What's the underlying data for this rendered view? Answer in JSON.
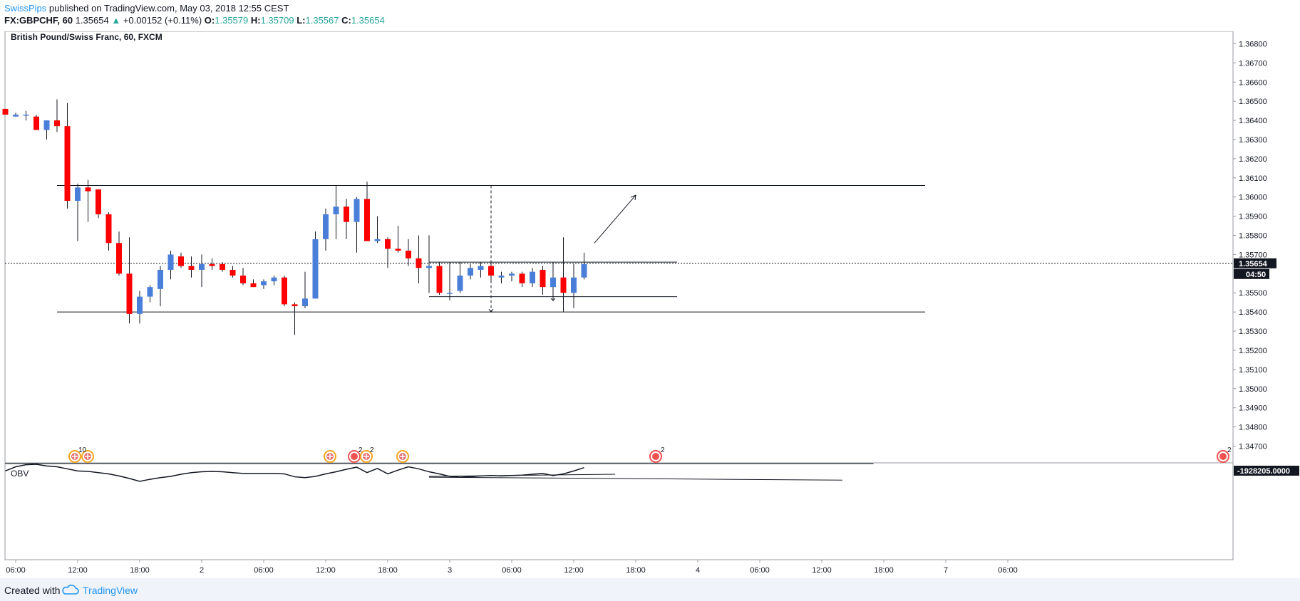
{
  "header": {
    "author": "SwissPips",
    "published_text": "published on TradingView.com, May 03, 2018 12:55 CEST",
    "symbol": "FX:GBPCHF, 60",
    "last": "1.35654",
    "up_arrow": "▲",
    "change": "+0.00152 (+0.11%)",
    "o_label": "O:",
    "o_value": "1.35579",
    "h_label": "H:",
    "h_value": "1.35709",
    "l_label": "L:",
    "l_value": "1.35567",
    "c_label": "C:",
    "c_value": "1.35654"
  },
  "chart_data": {
    "type": "candlestick",
    "title": "British Pound/Swiss Franc, 60, FXCM",
    "colors": {
      "up": "#4a7fd9",
      "down": "#ff0000",
      "grid_line": "#000000"
    },
    "ylim": [
      1.3462,
      1.3685
    ],
    "y_ticks": [
      "1.36800",
      "1.36700",
      "1.36600",
      "1.36500",
      "1.36400",
      "1.36300",
      "1.36200",
      "1.36100",
      "1.36000",
      "1.35900",
      "1.35800",
      "1.35700",
      "1.35654",
      "1.35500",
      "1.35400",
      "1.35300",
      "1.35200",
      "1.35100",
      "1.35000",
      "1.34900",
      "1.34800",
      "1.34700"
    ],
    "price_tag": "1.35654",
    "countdown_tag": "04:50",
    "x_ticks": [
      {
        "label": "06:00",
        "i": 1
      },
      {
        "label": "12:00",
        "i": 7
      },
      {
        "label": "18:00",
        "i": 13
      },
      {
        "label": "2",
        "i": 19
      },
      {
        "label": "06:00",
        "i": 25
      },
      {
        "label": "12:00",
        "i": 31
      },
      {
        "label": "18:00",
        "i": 37
      },
      {
        "label": "3",
        "i": 43
      },
      {
        "label": "06:00",
        "i": 49
      },
      {
        "label": "12:00",
        "i": 55
      },
      {
        "label": "18:00",
        "i": 61
      },
      {
        "label": "4",
        "i": 67
      },
      {
        "label": "06:00",
        "i": 73
      },
      {
        "label": "12:00",
        "i": 79
      },
      {
        "label": "18:00",
        "i": 85
      },
      {
        "label": "7",
        "i": 91
      },
      {
        "label": "06:00",
        "i": 97
      }
    ],
    "candles": [
      {
        "o": 1.3646,
        "h": 1.3646,
        "l": 1.3643,
        "c": 1.3643
      },
      {
        "o": 1.3642,
        "h": 1.3644,
        "l": 1.3642,
        "c": 1.3643
      },
      {
        "o": 1.3643,
        "h": 1.3645,
        "l": 1.364,
        "c": 1.3643
      },
      {
        "o": 1.3642,
        "h": 1.3643,
        "l": 1.3635,
        "c": 1.3635
      },
      {
        "o": 1.3635,
        "h": 1.364,
        "l": 1.363,
        "c": 1.364
      },
      {
        "o": 1.364,
        "h": 1.3651,
        "l": 1.3634,
        "c": 1.3637
      },
      {
        "o": 1.3637,
        "h": 1.3649,
        "l": 1.3594,
        "c": 1.3598
      },
      {
        "o": 1.3598,
        "h": 1.3607,
        "l": 1.3577,
        "c": 1.3605
      },
      {
        "o": 1.3605,
        "h": 1.3609,
        "l": 1.3587,
        "c": 1.3603
      },
      {
        "o": 1.3604,
        "h": 1.3604,
        "l": 1.3589,
        "c": 1.3591
      },
      {
        "o": 1.3591,
        "h": 1.3592,
        "l": 1.3572,
        "c": 1.3576
      },
      {
        "o": 1.3576,
        "h": 1.3582,
        "l": 1.3559,
        "c": 1.356
      },
      {
        "o": 1.356,
        "h": 1.3579,
        "l": 1.3534,
        "c": 1.3539
      },
      {
        "o": 1.3539,
        "h": 1.3551,
        "l": 1.3534,
        "c": 1.3548
      },
      {
        "o": 1.3548,
        "h": 1.3554,
        "l": 1.3545,
        "c": 1.3553
      },
      {
        "o": 1.3552,
        "h": 1.3564,
        "l": 1.3543,
        "c": 1.3562
      },
      {
        "o": 1.3562,
        "h": 1.3572,
        "l": 1.3557,
        "c": 1.357
      },
      {
        "o": 1.3569,
        "h": 1.3571,
        "l": 1.3563,
        "c": 1.3564
      },
      {
        "o": 1.3564,
        "h": 1.3569,
        "l": 1.3558,
        "c": 1.3562
      },
      {
        "o": 1.3562,
        "h": 1.357,
        "l": 1.3553,
        "c": 1.3565
      },
      {
        "o": 1.3565,
        "h": 1.3568,
        "l": 1.3562,
        "c": 1.3564
      },
      {
        "o": 1.3565,
        "h": 1.3566,
        "l": 1.3561,
        "c": 1.3562
      },
      {
        "o": 1.3562,
        "h": 1.3564,
        "l": 1.3558,
        "c": 1.3559
      },
      {
        "o": 1.3559,
        "h": 1.3563,
        "l": 1.3554,
        "c": 1.3555
      },
      {
        "o": 1.3555,
        "h": 1.3557,
        "l": 1.3553,
        "c": 1.3553
      },
      {
        "o": 1.3554,
        "h": 1.3557,
        "l": 1.3552,
        "c": 1.3556
      },
      {
        "o": 1.3556,
        "h": 1.3559,
        "l": 1.3554,
        "c": 1.3558
      },
      {
        "o": 1.3558,
        "h": 1.3559,
        "l": 1.3543,
        "c": 1.3544
      },
      {
        "o": 1.3544,
        "h": 1.3545,
        "l": 1.3528,
        "c": 1.3543
      },
      {
        "o": 1.3543,
        "h": 1.3561,
        "l": 1.3542,
        "c": 1.3547
      },
      {
        "o": 1.3547,
        "h": 1.3582,
        "l": 1.3547,
        "c": 1.3578
      },
      {
        "o": 1.3578,
        "h": 1.3594,
        "l": 1.3572,
        "c": 1.3591
      },
      {
        "o": 1.3591,
        "h": 1.3606,
        "l": 1.3578,
        "c": 1.3595
      },
      {
        "o": 1.3595,
        "h": 1.3599,
        "l": 1.3578,
        "c": 1.3587
      },
      {
        "o": 1.3587,
        "h": 1.36,
        "l": 1.3571,
        "c": 1.3599
      },
      {
        "o": 1.3599,
        "h": 1.3608,
        "l": 1.3577,
        "c": 1.3577
      },
      {
        "o": 1.3577,
        "h": 1.359,
        "l": 1.3576,
        "c": 1.3578
      },
      {
        "o": 1.3578,
        "h": 1.3579,
        "l": 1.3563,
        "c": 1.3573
      },
      {
        "o": 1.3573,
        "h": 1.3585,
        "l": 1.3571,
        "c": 1.3572
      },
      {
        "o": 1.3572,
        "h": 1.3578,
        "l": 1.3564,
        "c": 1.3568
      },
      {
        "o": 1.3568,
        "h": 1.358,
        "l": 1.3555,
        "c": 1.3563
      },
      {
        "o": 1.3563,
        "h": 1.358,
        "l": 1.355,
        "c": 1.3564
      },
      {
        "o": 1.3564,
        "h": 1.3566,
        "l": 1.3549,
        "c": 1.355
      },
      {
        "o": 1.355,
        "h": 1.3566,
        "l": 1.3546,
        "c": 1.355
      },
      {
        "o": 1.3551,
        "h": 1.3566,
        "l": 1.355,
        "c": 1.3559
      },
      {
        "o": 1.3559,
        "h": 1.3565,
        "l": 1.3557,
        "c": 1.3563
      },
      {
        "o": 1.3562,
        "h": 1.3566,
        "l": 1.3558,
        "c": 1.3564
      },
      {
        "o": 1.3564,
        "h": 1.3566,
        "l": 1.3556,
        "c": 1.3559
      },
      {
        "o": 1.3558,
        "h": 1.3561,
        "l": 1.3555,
        "c": 1.3559
      },
      {
        "o": 1.3559,
        "h": 1.3561,
        "l": 1.3556,
        "c": 1.356
      },
      {
        "o": 1.356,
        "h": 1.3561,
        "l": 1.3553,
        "c": 1.3555
      },
      {
        "o": 1.3555,
        "h": 1.3563,
        "l": 1.3553,
        "c": 1.3561
      },
      {
        "o": 1.3562,
        "h": 1.3564,
        "l": 1.3549,
        "c": 1.3553
      },
      {
        "o": 1.3553,
        "h": 1.3566,
        "l": 1.3548,
        "c": 1.3558
      },
      {
        "o": 1.3558,
        "h": 1.3579,
        "l": 1.354,
        "c": 1.355
      },
      {
        "o": 1.355,
        "h": 1.3565,
        "l": 1.3542,
        "c": 1.3558
      },
      {
        "o": 1.3558,
        "h": 1.3571,
        "l": 1.3557,
        "c": 1.3565
      }
    ],
    "levels": {
      "resistance": 1.3606,
      "support": 1.354,
      "range_top": 1.3566,
      "range_bottom": 1.3548,
      "last_price": 1.35654
    },
    "obv_label": "OBV",
    "obv_value": "-1928205.0000",
    "obv_series": [
      1,
      2,
      2.5,
      2.6,
      2.2,
      2.0,
      1.5,
      1.0,
      0.9,
      0.6,
      0.3,
      -0.2,
      -0.8,
      -1.5,
      -1.0,
      -0.6,
      -0.3,
      0.2,
      0.6,
      0.8,
      0.9,
      0.8,
      0.6,
      0.4,
      0.4,
      0.4,
      0.4,
      0.3,
      -0.4,
      -0.6,
      -0.3,
      0.3,
      0.8,
      1.4,
      1.9,
      0.6,
      1.6,
      0.3,
      1.2,
      2.0,
      1.5,
      0.8,
      0.3,
      -0.3,
      -0.5,
      -0.4,
      -0.2,
      -0.1,
      -0.2,
      -0.1,
      0.0,
      0.2,
      0.4,
      -0.1,
      0.3,
      1.0,
      1.8
    ]
  },
  "events": {
    "badge_10": "10",
    "badge_2a": "2",
    "badge_2b": "2",
    "badge_2c": "2",
    "badge_2d": "2"
  },
  "footer": {
    "created_with": "Created with",
    "brand": "TradingView"
  }
}
